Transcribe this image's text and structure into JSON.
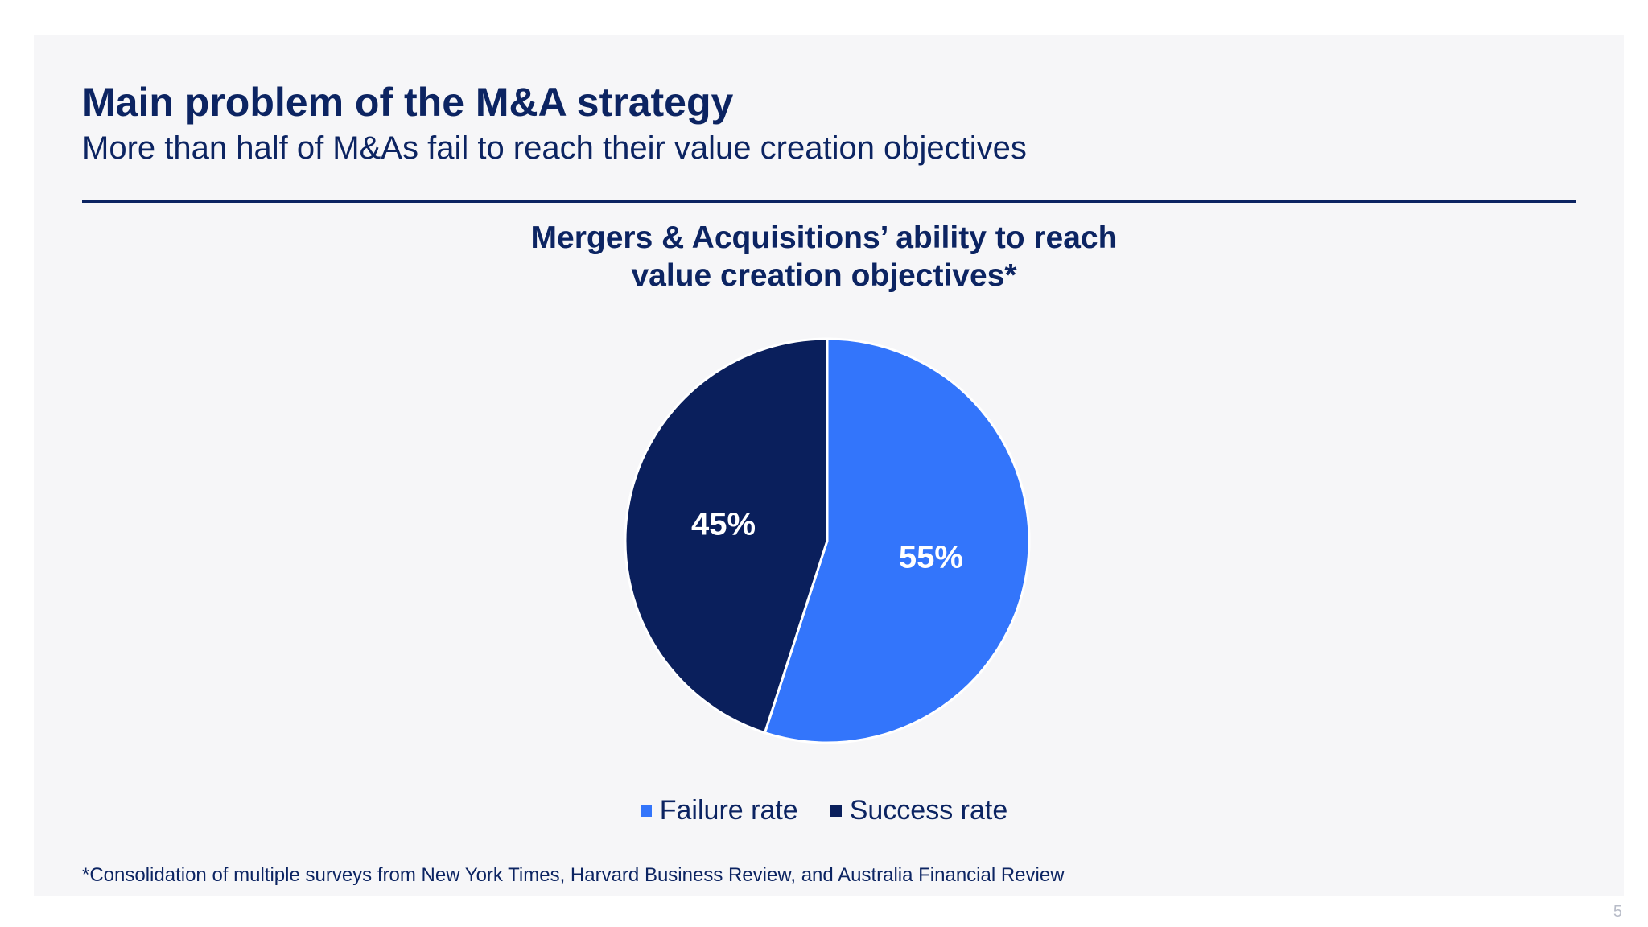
{
  "slide": {
    "title": "Main problem of the M&A strategy",
    "subtitle": "More than half of M&As fail to reach their value creation objectives",
    "footnote": "*Consolidation of multiple surveys from New York Times, Harvard Business Review, and Australia Financial Review",
    "page_number": "5"
  },
  "chart_data": {
    "type": "pie",
    "title_lines": [
      "Mergers & Acquisitions’ ability to reach",
      "value creation objectives*"
    ],
    "categories": [
      "Failure rate",
      "Success rate"
    ],
    "values": [
      55,
      45
    ],
    "data_labels": [
      "55%",
      "45%"
    ],
    "colors": [
      "#3375fb",
      "#0a1f5c"
    ],
    "legend_position": "bottom"
  }
}
